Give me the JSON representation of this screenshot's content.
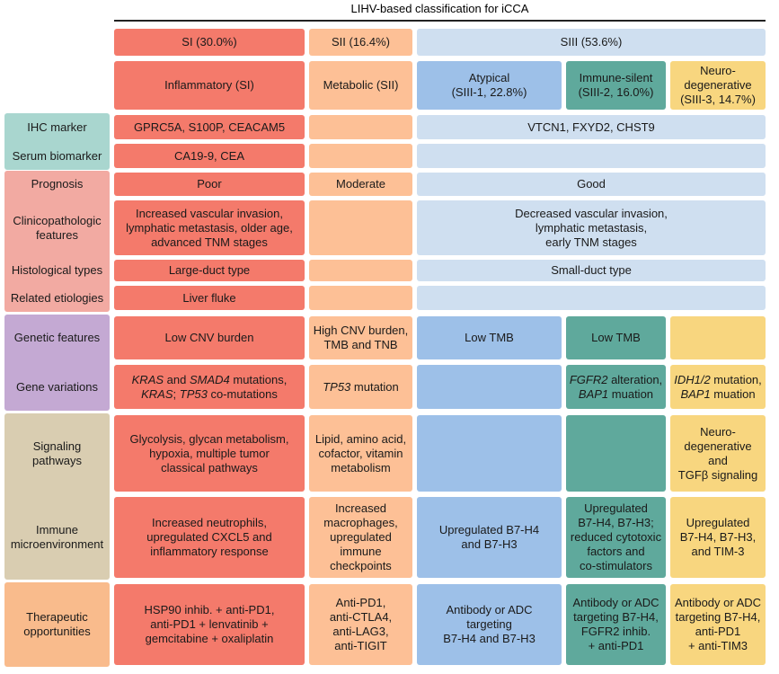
{
  "header": {
    "title": "LIHV-based classification for iCCA",
    "groups": [
      "SI (30.0%)",
      "SII (16.4%)",
      "SIII (53.6%)"
    ],
    "subtypes": [
      "Inflammatory (SI)",
      "Metabolic (SII)",
      "Atypical\n(SIII-1, 22.8%)",
      "Immune-silent\n(SIII-2, 16.0%)",
      "Neuro-\ndegenerative\n(SIII-3, 14.7%)"
    ]
  },
  "rows": [
    {
      "label": "IHC marker",
      "cells": {
        "si": "GPRC5A, S100P, CEACAM5",
        "siii": "VTCN1, FXYD2, CHST9"
      }
    },
    {
      "label": "Serum biomarker",
      "cells": {
        "si": "CA19-9, CEA"
      }
    },
    {
      "label": "Prognosis",
      "cells": {
        "si": "Poor",
        "sii": "Moderate",
        "siii": "Good"
      }
    },
    {
      "label": "Clinicopathologic\nfeatures",
      "cells": {
        "si": "Increased vascular invasion,\nlymphatic metastasis, older age,\nadvanced TNM stages",
        "siii": "Decreased vascular invasion,\nlymphatic metastasis,\nearly TNM stages"
      }
    },
    {
      "label": "Histological types",
      "cells": {
        "si": "Large-duct type",
        "siii": "Small-duct type"
      }
    },
    {
      "label": "Related etiologies",
      "cells": {
        "si": "Liver fluke"
      }
    },
    {
      "label": "Genetic features",
      "cells": {
        "si": "Low CNV burden",
        "sii": "High CNV burden,\nTMB and TNB",
        "siii1": "Low TMB",
        "siii2": "Low TMB"
      }
    },
    {
      "label": "Gene variations",
      "cells": {
        "si": [
          {
            "text": "KRAS",
            "italic": true
          },
          {
            "text": " and "
          },
          {
            "text": "SMAD4",
            "italic": true
          },
          {
            "text": " mutations,\n"
          },
          {
            "text": "KRAS",
            "italic": true
          },
          {
            "text": "; "
          },
          {
            "text": "TP53",
            "italic": true
          },
          {
            "text": " co-mutations"
          }
        ],
        "sii": [
          {
            "text": "TP53",
            "italic": true
          },
          {
            "text": " mutation"
          }
        ],
        "siii2": [
          {
            "text": "FGFR2",
            "italic": true
          },
          {
            "text": " alteration,\n"
          },
          {
            "text": "BAP1",
            "italic": true
          },
          {
            "text": " muation"
          }
        ],
        "siii3": [
          {
            "text": "IDH1/2",
            "italic": true
          },
          {
            "text": " mutation,\n"
          },
          {
            "text": "BAP1",
            "italic": true
          },
          {
            "text": " muation"
          }
        ]
      }
    },
    {
      "label": "Signaling\npathways",
      "cells": {
        "si": "Glycolysis, glycan metabolism,\nhypoxia, multiple tumor\nclassical pathways",
        "sii": "Lipid, amino acid,\ncofactor, vitamin\nmetabolism",
        "siii3": "Neuro-\ndegenerative\nand\nTGFβ signaling"
      }
    },
    {
      "label": "Immune\nmicroenvironment",
      "cells": {
        "si": "Increased neutrophils,\nupregulated CXCL5 and\ninflammatory response",
        "sii": "Increased\nmacrophages,\nupregulated\nimmune\ncheckpoints",
        "siii1": "Upregulated B7-H4\nand B7-H3",
        "siii2": "Upregulated\nB7-H4, B7-H3;\nreduced cytotoxic\nfactors and\nco-stimulators",
        "siii3": "Upregulated\nB7-H4, B7-H3,\nand TIM-3"
      }
    },
    {
      "label": "Therapeutic\nopportunities",
      "cells": {
        "si": "HSP90 inhib. + anti-PD1,\nanti-PD1 + lenvatinib +\ngemcitabine + oxaliplatin",
        "sii": "Anti-PD1,\nanti-CTLA4,\nanti-LAG3,\nanti-TIGIT",
        "siii1": "Antibody or ADC\ntargeting\nB7-H4 and B7-H3",
        "siii2": "Antibody or ADC\ntargeting B7-H4,\nFGFR2 inhib.\n+ anti-PD1",
        "siii3": "Antibody or ADC\ntargeting B7-H4,\nanti-PD1\n+ anti-TIM3"
      }
    }
  ]
}
